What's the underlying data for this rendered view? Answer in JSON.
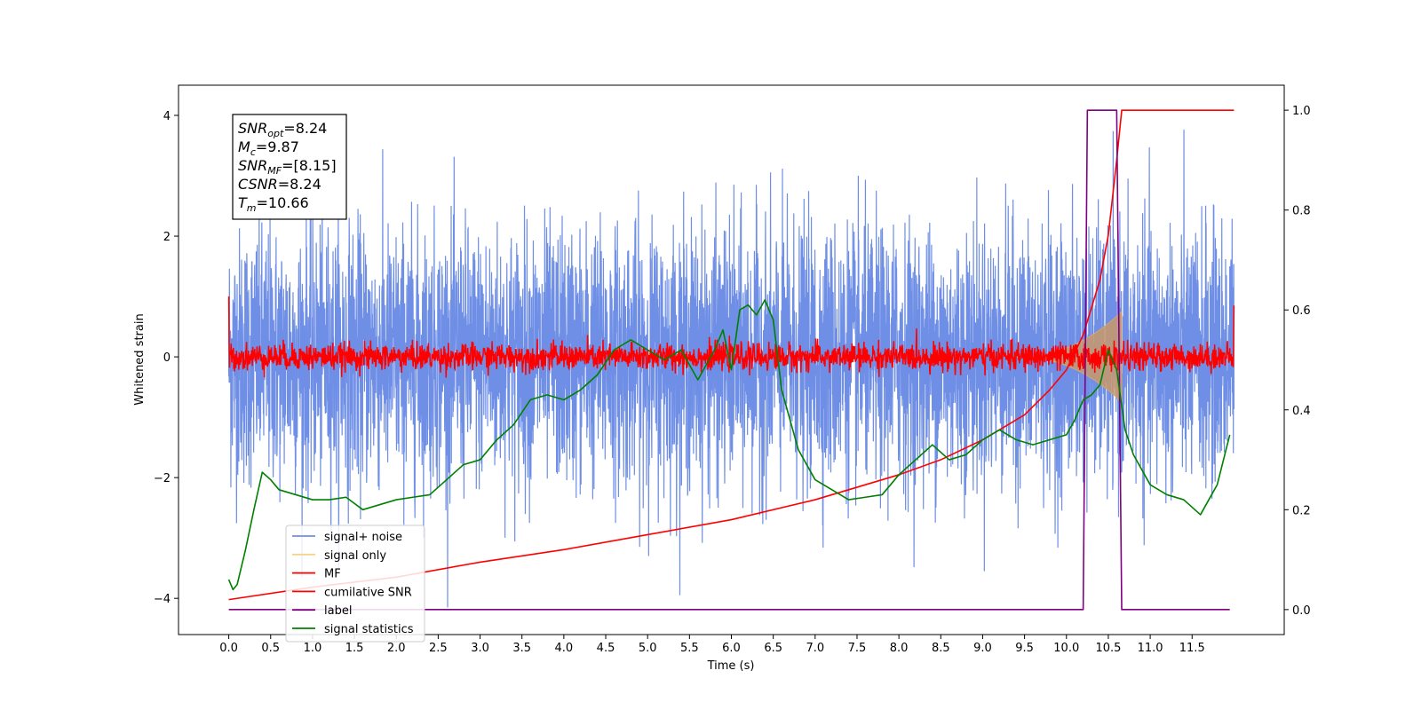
{
  "chart_data": {
    "type": "line",
    "xlabel": "Time (s)",
    "ylabel": "Whitened strain",
    "xlim": [
      -0.6,
      12.6
    ],
    "ylim_left": [
      -4.6,
      4.5
    ],
    "ylim_right": [
      -0.05,
      1.05
    ],
    "x_ticks": [
      0.0,
      0.5,
      1.0,
      1.5,
      2.0,
      2.5,
      3.0,
      3.5,
      4.0,
      4.5,
      5.0,
      5.5,
      6.0,
      6.5,
      7.0,
      7.5,
      8.0,
      8.5,
      9.0,
      9.5,
      10.0,
      10.5,
      11.0,
      11.5
    ],
    "x_tick_labels": [
      "0.0",
      "0.5",
      "1.0",
      "1.5",
      "2.0",
      "2.5",
      "3.0",
      "3.5",
      "4.0",
      "4.5",
      "5.0",
      "5.5",
      "6.0",
      "6.5",
      "7.0",
      "7.5",
      "8.0",
      "8.5",
      "9.0",
      "9.5",
      "10.0",
      "10.5",
      "11.0",
      "11.5"
    ],
    "y_left_ticks": [
      -4,
      -2,
      0,
      2,
      4
    ],
    "y_left_tick_labels": [
      "−4",
      "−2",
      "0",
      "2",
      "4"
    ],
    "y_right_ticks": [
      0.0,
      0.2,
      0.4,
      0.6,
      0.8,
      1.0
    ],
    "y_right_tick_labels": [
      "0.0",
      "0.2",
      "0.4",
      "0.6",
      "0.8",
      "1.0"
    ],
    "annotation": [
      {
        "main": "SNR",
        "sub": "opt",
        "rest": "=8.24"
      },
      {
        "main": "M",
        "sub": "c",
        "rest": "=9.87"
      },
      {
        "main": "SNR",
        "sub": "MF",
        "rest": "=[8.15]"
      },
      {
        "main": "CSNR",
        "sub": "",
        "rest": "=8.24"
      },
      {
        "main": "T",
        "sub": "m",
        "rest": "=10.66"
      }
    ],
    "legend_position": "lower-left",
    "legend": [
      {
        "label": "signal+ noise",
        "color": "#6f8fe6"
      },
      {
        "label": "signal only",
        "color": "#f5d38a"
      },
      {
        "label": "MF",
        "color": "#ff0000"
      },
      {
        "label": "cumilative SNR",
        "color": "#ff0000"
      },
      {
        "label": "label",
        "color": "#800080"
      },
      {
        "label": "signal statistics",
        "color": "#008000"
      }
    ],
    "series": [
      {
        "name": "signal+ noise",
        "axis": "left",
        "kind": "noise",
        "x_range": [
          0.0,
          12.0
        ],
        "sigma": 1.05,
        "y_range_observed": [
          -4.15,
          4.05
        ]
      },
      {
        "name": "signal only",
        "axis": "left",
        "kind": "chirp",
        "x_range": [
          9.4,
          10.66
        ],
        "max_amplitude": 0.75
      },
      {
        "name": "MF",
        "axis": "left",
        "kind": "noise",
        "x_range": [
          0.0,
          12.0
        ],
        "sigma": 0.11,
        "start_value": 1.0,
        "end_value": 0.85
      },
      {
        "name": "cumilative SNR",
        "axis": "right",
        "x": [
          0.0,
          1.0,
          2.0,
          3.0,
          4.0,
          5.0,
          6.0,
          7.0,
          8.0,
          8.5,
          9.0,
          9.5,
          9.8,
          10.0,
          10.2,
          10.4,
          10.5,
          10.6,
          10.66,
          12.0
        ],
        "y": [
          0.02,
          0.045,
          0.065,
          0.095,
          0.12,
          0.15,
          0.18,
          0.22,
          0.27,
          0.3,
          0.34,
          0.39,
          0.44,
          0.48,
          0.55,
          0.66,
          0.75,
          0.9,
          1.0,
          1.0
        ]
      },
      {
        "name": "label",
        "axis": "right",
        "x": [
          0.0,
          10.2,
          10.25,
          10.6,
          10.66,
          11.95
        ],
        "y": [
          0.0,
          0.0,
          1.0,
          1.0,
          0.0,
          0.0
        ]
      },
      {
        "name": "signal statistics",
        "axis": "right",
        "x": [
          0.0,
          0.05,
          0.1,
          0.2,
          0.3,
          0.4,
          0.5,
          0.6,
          0.8,
          1.0,
          1.2,
          1.4,
          1.6,
          1.8,
          2.0,
          2.2,
          2.4,
          2.6,
          2.8,
          3.0,
          3.2,
          3.4,
          3.6,
          3.8,
          4.0,
          4.2,
          4.4,
          4.6,
          4.8,
          5.0,
          5.2,
          5.4,
          5.6,
          5.8,
          5.9,
          6.0,
          6.1,
          6.2,
          6.3,
          6.4,
          6.5,
          6.6,
          6.8,
          7.0,
          7.2,
          7.4,
          7.6,
          7.8,
          8.0,
          8.2,
          8.4,
          8.6,
          8.8,
          9.0,
          9.2,
          9.4,
          9.6,
          9.8,
          10.0,
          10.1,
          10.2,
          10.3,
          10.4,
          10.5,
          10.6,
          10.7,
          10.8,
          11.0,
          11.2,
          11.4,
          11.6,
          11.8,
          11.95
        ],
        "y": [
          0.06,
          0.04,
          0.05,
          0.12,
          0.2,
          0.275,
          0.26,
          0.24,
          0.23,
          0.22,
          0.22,
          0.225,
          0.2,
          0.21,
          0.22,
          0.225,
          0.23,
          0.26,
          0.29,
          0.3,
          0.34,
          0.37,
          0.42,
          0.43,
          0.42,
          0.44,
          0.47,
          0.52,
          0.54,
          0.52,
          0.5,
          0.52,
          0.46,
          0.52,
          0.56,
          0.48,
          0.6,
          0.61,
          0.59,
          0.62,
          0.58,
          0.44,
          0.32,
          0.26,
          0.24,
          0.22,
          0.225,
          0.23,
          0.27,
          0.3,
          0.33,
          0.3,
          0.31,
          0.34,
          0.36,
          0.34,
          0.33,
          0.34,
          0.35,
          0.38,
          0.42,
          0.43,
          0.45,
          0.52,
          0.48,
          0.36,
          0.31,
          0.25,
          0.23,
          0.22,
          0.19,
          0.25,
          0.35
        ]
      }
    ]
  }
}
